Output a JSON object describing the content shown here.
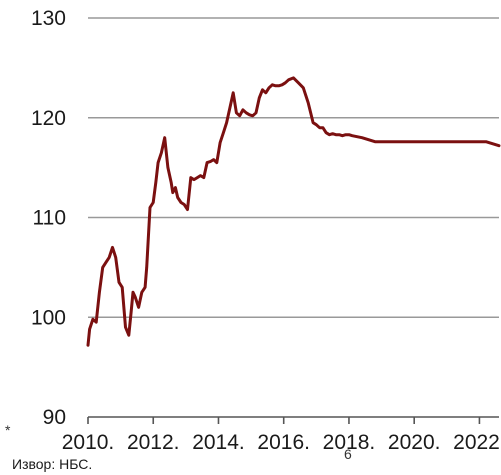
{
  "chart_data": {
    "type": "line",
    "title": "",
    "xlabel": "",
    "ylabel": "",
    "ylim": [
      90,
      130
    ],
    "xlim": [
      2010,
      2022.6
    ],
    "grid": true,
    "yticks": [
      90,
      100,
      110,
      120,
      130
    ],
    "xticks": [
      "2010.",
      "2012.",
      "2014.",
      "2016.",
      "2018.",
      "2020.",
      "2022."
    ],
    "xtick_values": [
      2010,
      2012,
      2014,
      2016,
      2018,
      2020,
      2022
    ],
    "series_color": "#7b1010",
    "grid_color": "#999999",
    "series": [
      {
        "x": [
          2010.0,
          2010.05,
          2010.15,
          2010.25,
          2010.35,
          2010.45,
          2010.55,
          2010.65,
          2010.75,
          2010.85,
          2010.95,
          2011.05,
          2011.15,
          2011.25,
          2011.32,
          2011.38,
          2011.45,
          2011.55,
          2011.65,
          2011.75,
          2011.8,
          2011.9,
          2012.0,
          2012.08,
          2012.15,
          2012.25,
          2012.35,
          2012.45,
          2012.55,
          2012.6,
          2012.68,
          2012.75,
          2012.85,
          2012.95,
          2013.05,
          2013.15,
          2013.25,
          2013.35,
          2013.45,
          2013.55,
          2013.65,
          2013.75,
          2013.85,
          2013.95,
          2014.05,
          2014.15,
          2014.25,
          2014.35,
          2014.45,
          2014.55,
          2014.65,
          2014.75,
          2014.85,
          2014.95,
          2015.05,
          2015.15,
          2015.25,
          2015.35,
          2015.45,
          2015.55,
          2015.65,
          2015.75,
          2015.85,
          2015.95,
          2016.05,
          2016.15,
          2016.3,
          2016.45,
          2016.6,
          2016.75,
          2016.9,
          2017.0,
          2017.1,
          2017.2,
          2017.3,
          2017.4,
          2017.5,
          2017.6,
          2017.7,
          2017.8,
          2017.9,
          2018.0,
          2018.1,
          2018.25,
          2018.4,
          2018.6,
          2018.8,
          2019.0,
          2019.2,
          2019.4,
          2019.6,
          2019.8,
          2020.0,
          2020.3,
          2020.6,
          2020.9,
          2021.2,
          2021.5,
          2021.8,
          2022.1,
          2022.2,
          2022.3,
          2022.4,
          2022.6
        ],
        "values": [
          97.2,
          98.8,
          99.8,
          99.5,
          102.5,
          105.0,
          105.5,
          106.0,
          107.0,
          106.0,
          103.5,
          103.0,
          99.0,
          98.2,
          100.5,
          102.5,
          102.0,
          101.0,
          102.5,
          103.0,
          105.0,
          111.0,
          111.5,
          113.5,
          115.5,
          116.5,
          118.0,
          115.0,
          113.5,
          112.5,
          113.0,
          112.0,
          111.5,
          111.3,
          110.8,
          114.0,
          113.8,
          114.0,
          114.2,
          114.0,
          115.5,
          115.6,
          115.8,
          115.5,
          117.5,
          118.5,
          119.5,
          121.0,
          122.5,
          120.5,
          120.2,
          120.8,
          120.5,
          120.3,
          120.2,
          120.5,
          122.0,
          122.8,
          122.5,
          123.0,
          123.3,
          123.2,
          123.2,
          123.3,
          123.5,
          123.8,
          124.0,
          123.5,
          123.0,
          121.5,
          119.5,
          119.3,
          119.0,
          119.0,
          118.5,
          118.3,
          118.4,
          118.3,
          118.3,
          118.2,
          118.3,
          118.3,
          118.2,
          118.1,
          118.0,
          117.8,
          117.6,
          117.6,
          117.6,
          117.6,
          117.6,
          117.6,
          117.6,
          117.6,
          117.6,
          117.6,
          117.6,
          117.6,
          117.6,
          117.6,
          117.6,
          117.5,
          117.4,
          117.2
        ]
      }
    ],
    "source": "Извор: НБС.",
    "footnote_mark": "*",
    "stray_mark": "6"
  }
}
